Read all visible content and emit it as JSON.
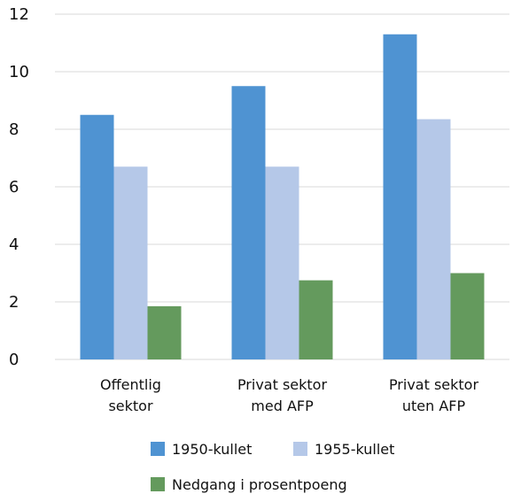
{
  "chart_data": {
    "type": "bar",
    "title": "",
    "xlabel": "",
    "ylabel": "",
    "ylim": [
      0,
      12
    ],
    "yticks": [
      0,
      2,
      4,
      6,
      8,
      10,
      12
    ],
    "grid": true,
    "legend_position": "bottom",
    "categories": [
      [
        "Offentlig",
        "sektor"
      ],
      [
        "Privat sektor",
        "med AFP"
      ],
      [
        "Privat sektor",
        "uten AFP"
      ]
    ],
    "series": [
      {
        "name": "1950-kullet",
        "color": "#4f93d2",
        "values": [
          8.5,
          9.5,
          11.3
        ]
      },
      {
        "name": "1955-kullet",
        "color": "#b5c8e8",
        "values": [
          6.7,
          6.7,
          8.35
        ]
      },
      {
        "name": "Nedgang i prosentpoeng",
        "color": "#649a5d",
        "values": [
          1.85,
          2.75,
          3.0
        ]
      }
    ]
  }
}
